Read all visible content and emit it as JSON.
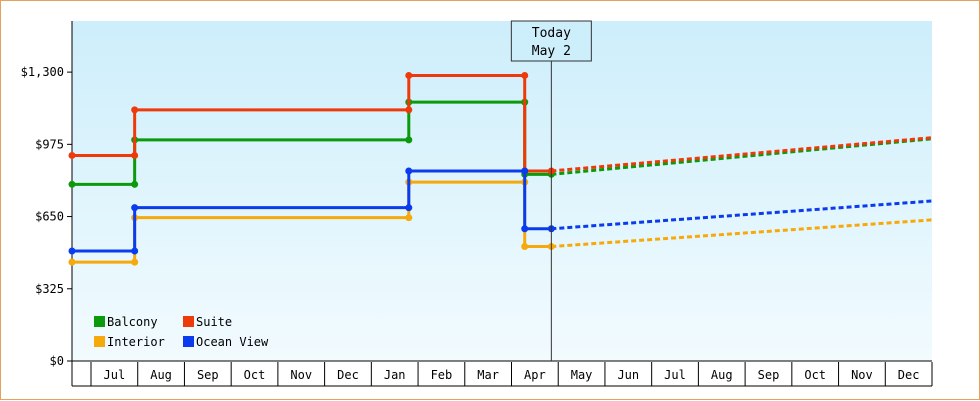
{
  "chart_data": {
    "type": "line",
    "step": true,
    "x_axis_labels": [
      "Jul",
      "Aug",
      "Sep",
      "Oct",
      "Nov",
      "Dec",
      "Jan",
      "Feb",
      "Mar",
      "Apr",
      "May",
      "Jun",
      "Jul",
      "Aug",
      "Sep",
      "Oct",
      "Nov",
      "Dec"
    ],
    "y_ticks": [
      {
        "value": 0,
        "label": "$0"
      },
      {
        "value": 325,
        "label": "$325"
      },
      {
        "value": 650,
        "label": "$650"
      },
      {
        "value": 975,
        "label": "$975"
      },
      {
        "value": 1300,
        "label": "$1,300"
      }
    ],
    "ylim": [
      0,
      1530
    ],
    "x_range": [
      "2024-06-30",
      "2025-12-31"
    ],
    "grid": false,
    "legend_placement": "bottom-left",
    "today": {
      "line1": "Today",
      "line2": "May 2",
      "date": "2025-05-02"
    },
    "series": [
      {
        "name": "Balcony",
        "color": "#0a9a0a",
        "points": [
          {
            "date": "2024-06-30",
            "value": 795
          },
          {
            "date": "2024-08-09",
            "value": 795
          },
          {
            "date": "2024-08-09",
            "value": 995
          },
          {
            "date": "2025-01-31",
            "value": 995
          },
          {
            "date": "2025-01-31",
            "value": 1165
          },
          {
            "date": "2025-04-15",
            "value": 1165
          },
          {
            "date": "2025-04-15",
            "value": 840
          },
          {
            "date": "2025-05-02",
            "value": 840
          }
        ],
        "forecast": [
          {
            "date": "2025-05-02",
            "value": 840
          },
          {
            "date": "2025-12-31",
            "value": 1000
          }
        ]
      },
      {
        "name": "Suite",
        "color": "#ee3a0a",
        "points": [
          {
            "date": "2024-06-30",
            "value": 925
          },
          {
            "date": "2024-08-09",
            "value": 925
          },
          {
            "date": "2024-08-09",
            "value": 1130
          },
          {
            "date": "2025-01-31",
            "value": 1130
          },
          {
            "date": "2025-01-31",
            "value": 1285
          },
          {
            "date": "2025-04-15",
            "value": 1285
          },
          {
            "date": "2025-04-15",
            "value": 855
          },
          {
            "date": "2025-05-02",
            "value": 855
          }
        ],
        "forecast": [
          {
            "date": "2025-05-02",
            "value": 855
          },
          {
            "date": "2025-12-31",
            "value": 1005
          }
        ]
      },
      {
        "name": "Interior",
        "color": "#f6a90a",
        "points": [
          {
            "date": "2024-06-30",
            "value": 445
          },
          {
            "date": "2024-08-09",
            "value": 445
          },
          {
            "date": "2024-08-09",
            "value": 645
          },
          {
            "date": "2025-01-31",
            "value": 645
          },
          {
            "date": "2025-01-31",
            "value": 805
          },
          {
            "date": "2025-04-15",
            "value": 805
          },
          {
            "date": "2025-04-15",
            "value": 515
          },
          {
            "date": "2025-05-02",
            "value": 515
          }
        ],
        "forecast": [
          {
            "date": "2025-05-02",
            "value": 515
          },
          {
            "date": "2025-12-31",
            "value": 635
          }
        ]
      },
      {
        "name": "Ocean View",
        "color": "#0a3cee",
        "points": [
          {
            "date": "2024-06-30",
            "value": 495
          },
          {
            "date": "2024-08-09",
            "value": 495
          },
          {
            "date": "2024-08-09",
            "value": 690
          },
          {
            "date": "2025-01-31",
            "value": 690
          },
          {
            "date": "2025-01-31",
            "value": 855
          },
          {
            "date": "2025-04-15",
            "value": 855
          },
          {
            "date": "2025-04-15",
            "value": 595
          },
          {
            "date": "2025-05-02",
            "value": 595
          }
        ],
        "forecast": [
          {
            "date": "2025-05-02",
            "value": 595
          },
          {
            "date": "2025-12-31",
            "value": 720
          }
        ]
      }
    ]
  }
}
